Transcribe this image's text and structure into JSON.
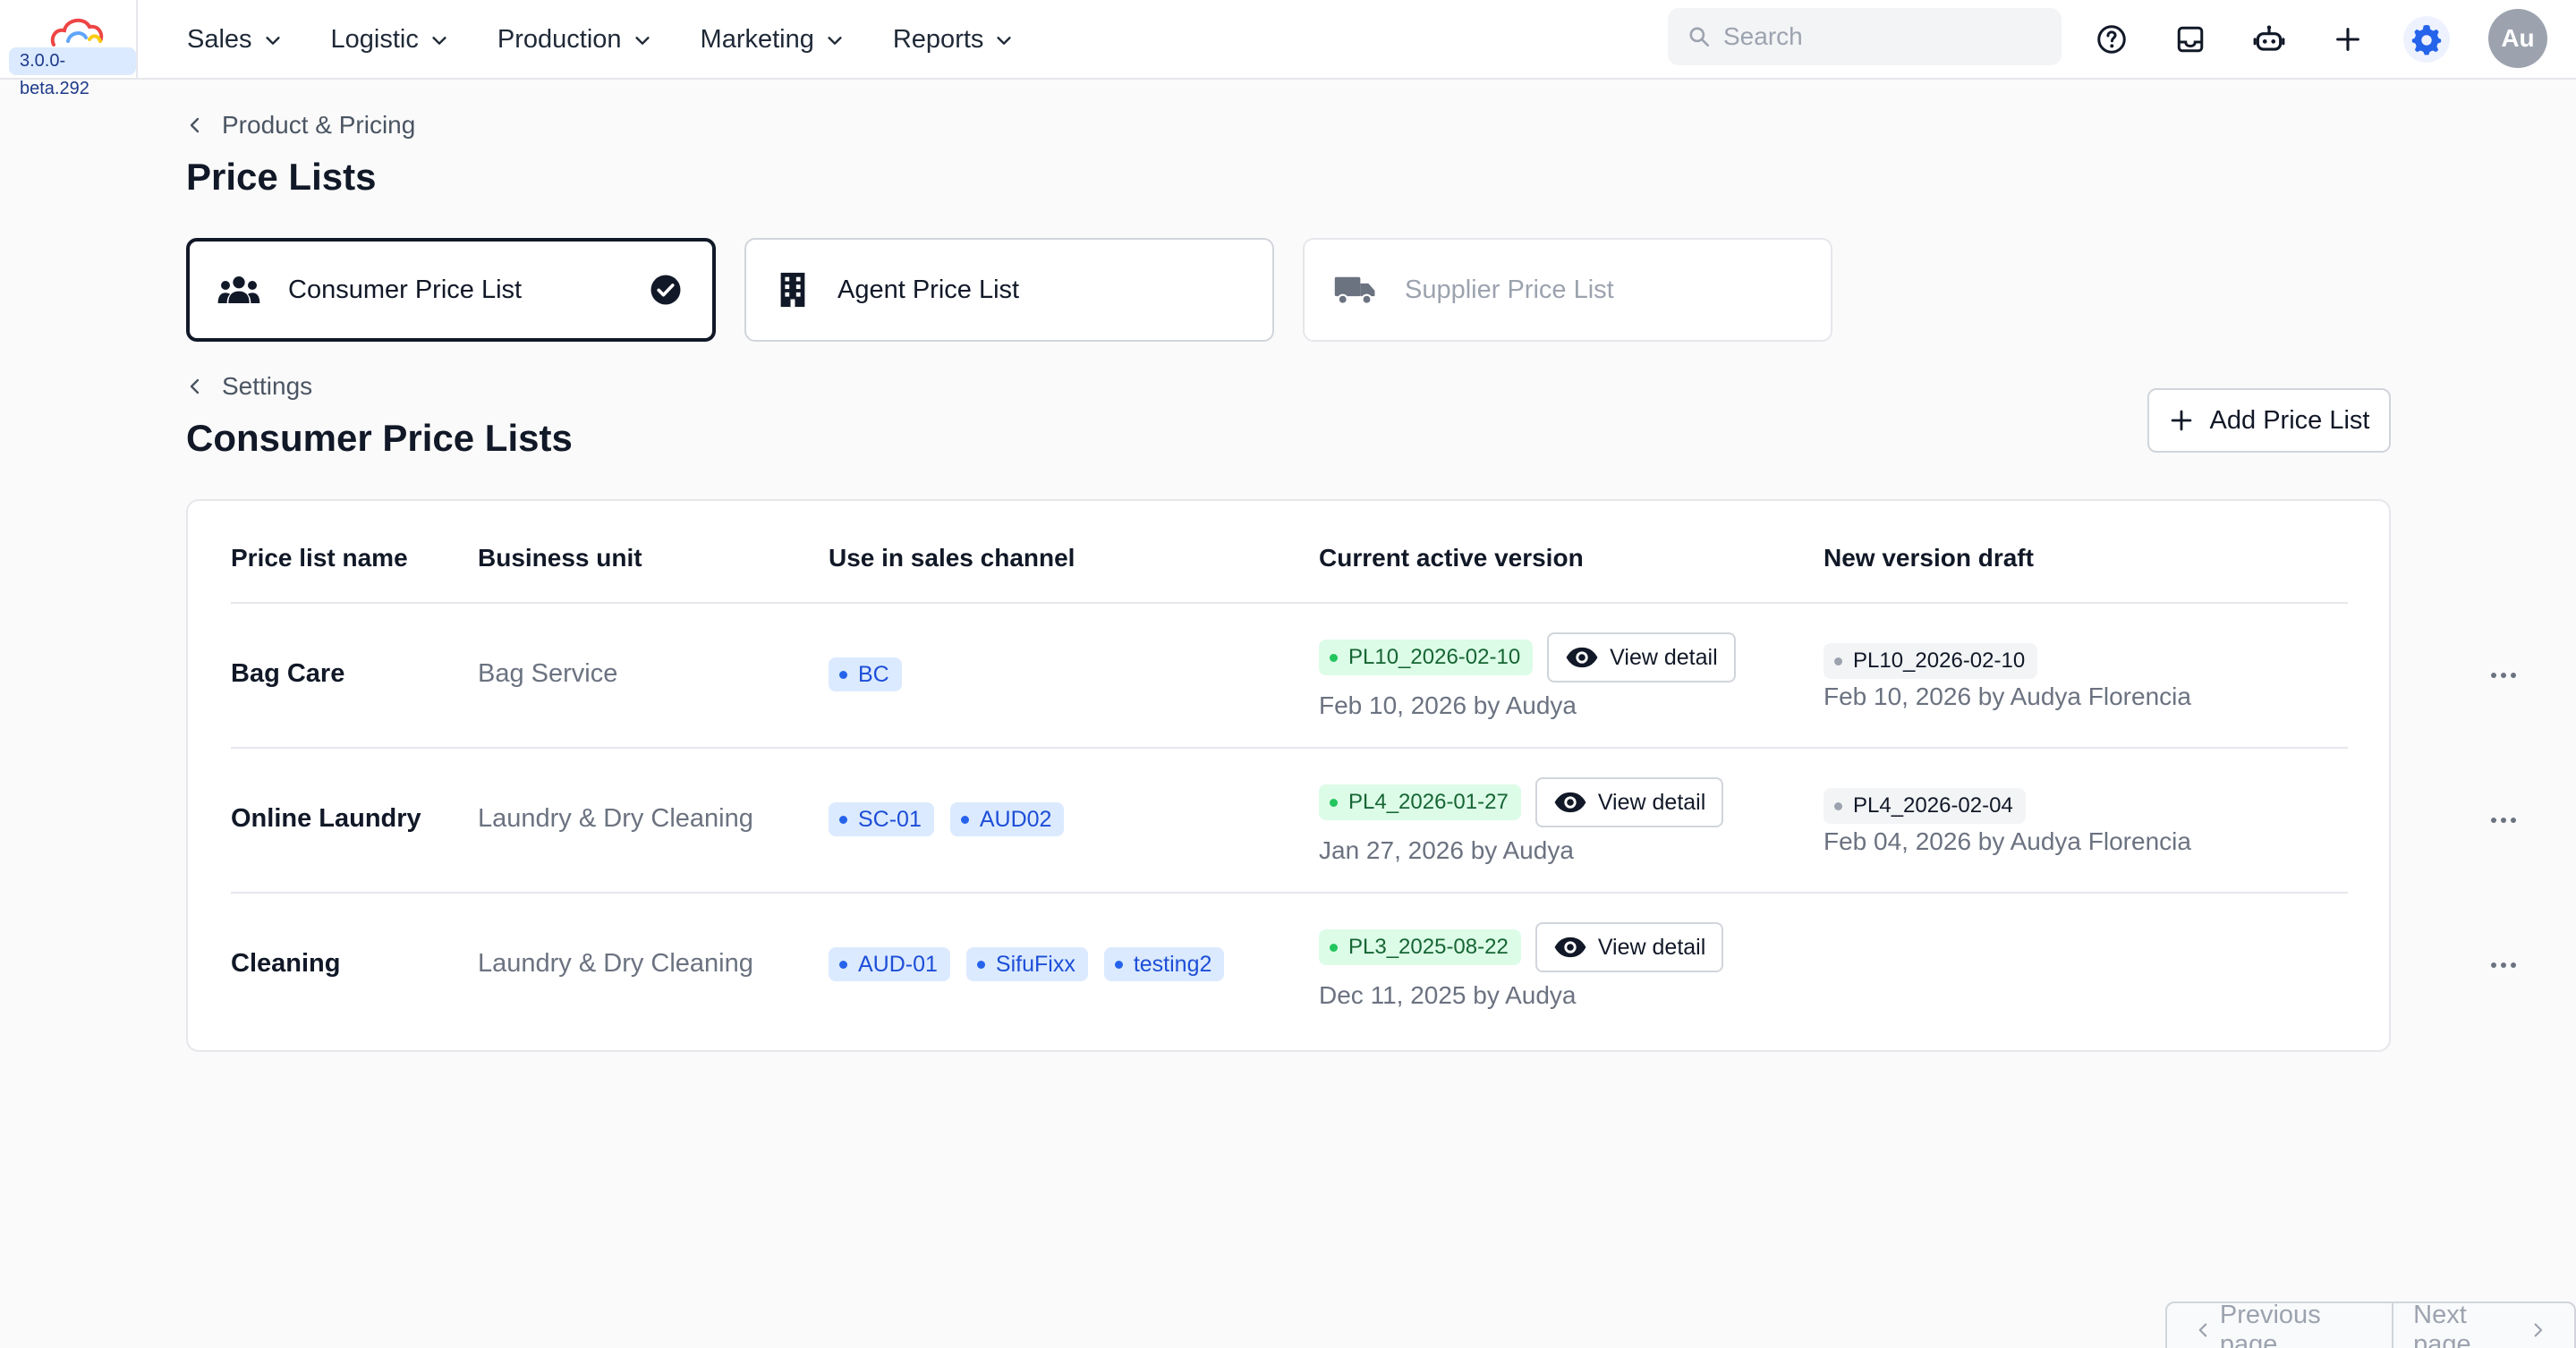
{
  "app": {
    "version": "3.0.0-beta.292",
    "brand_colors": {
      "accent": "#2563eb",
      "cloud_red": "#ef4444",
      "cloud_blue": "#60a5fa",
      "cloud_yellow": "#facc15"
    }
  },
  "nav": [
    {
      "label": "Sales"
    },
    {
      "label": "Logistic"
    },
    {
      "label": "Production"
    },
    {
      "label": "Marketing"
    },
    {
      "label": "Reports"
    }
  ],
  "search": {
    "placeholder": "Search"
  },
  "toolbar_icons": [
    "help-icon",
    "inbox-icon",
    "bot-icon",
    "plus-icon",
    "settings-icon"
  ],
  "user": {
    "initials": "Au"
  },
  "breadcrumb_top": "Product & Pricing",
  "page_title": "Price Lists",
  "type_cards": [
    {
      "label": "Consumer Price List",
      "icon": "people-icon",
      "selected": true
    },
    {
      "label": "Agent Price List",
      "icon": "building-icon",
      "selected": false
    },
    {
      "label": "Supplier Price List",
      "icon": "truck-icon",
      "selected": false,
      "disabled": true
    }
  ],
  "breadcrumb_section": "Settings",
  "section_title": "Consumer Price Lists",
  "add_button": "Add Price List",
  "table": {
    "headers": [
      "Price list name",
      "Business unit",
      "Use in sales channel",
      "Current active version",
      "New version draft"
    ],
    "view_label": "View detail",
    "rows": [
      {
        "name": "Bag Care",
        "business_unit": "Bag Service",
        "channels": [
          "BC"
        ],
        "active_version": "PL10_2026-02-10",
        "active_meta": "Feb 10, 2026 by Audya",
        "draft_version": "PL10_2026-02-10",
        "draft_meta": "Feb 10, 2026 by Audya Florencia"
      },
      {
        "name": "Online Laundry",
        "business_unit": "Laundry & Dry Cleaning",
        "channels": [
          "SC-01",
          "AUD02"
        ],
        "active_version": "PL4_2026-01-27",
        "active_meta": "Jan 27, 2026 by Audya",
        "draft_version": "PL4_2026-02-04",
        "draft_meta": "Feb 04, 2026 by Audya Florencia"
      },
      {
        "name": "Cleaning",
        "business_unit": "Laundry & Dry Cleaning",
        "channels": [
          "AUD-01",
          "SifuFixx",
          "testing2"
        ],
        "active_version": "PL3_2025-08-22",
        "active_meta": "Dec 11, 2025 by Audya",
        "draft_version": "",
        "draft_meta": ""
      }
    ]
  },
  "pagination": {
    "prev": "Previous page",
    "next": "Next page"
  }
}
